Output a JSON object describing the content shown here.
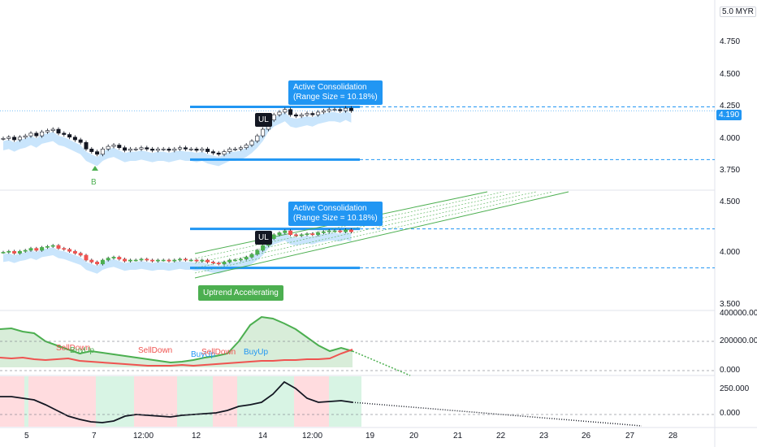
{
  "currency_label": "5.0 MYR",
  "price_tag": "4.190",
  "pane1_ticks": [
    "4.750",
    "4.500",
    "4.250",
    "4.000",
    "3.750"
  ],
  "pane2_ticks": [
    "4.500",
    "4.000",
    "3.500"
  ],
  "pane3_ticks": [
    "400000.000",
    "200000.000",
    "0.000"
  ],
  "pane4_ticks": [
    "250.000",
    "0.000"
  ],
  "x_ticks": [
    "5",
    "7",
    "12:00",
    "12",
    "14",
    "12:00",
    "19",
    "20",
    "21",
    "22",
    "23",
    "26",
    "27",
    "28"
  ],
  "annotation": {
    "line1": "Active Consolidation",
    "line2": "(Range Size = 10.18%)"
  },
  "annotation2": {
    "line1": "Active Consolidation",
    "line2": "(Range Size = 10.18%)"
  },
  "ul_label": "UL",
  "ul_label2": "UL",
  "b_label": "B",
  "uptrend_label": "Uptrend Accelerating",
  "signals": [
    {
      "text": "SellDown",
      "color": "#ef5350"
    },
    {
      "text": "BuyUp",
      "color": "#4caf50"
    },
    {
      "text": "SellDown",
      "color": "#ef5350"
    },
    {
      "text": "BuyUp",
      "color": "#2196f3"
    },
    {
      "text": "SellDown",
      "color": "#ef5350"
    },
    {
      "text": "BuyUp",
      "color": "#2196f3"
    }
  ],
  "colors": {
    "accent": "#2196f3",
    "up": "#26a69a",
    "down": "#ef5350",
    "green": "#4caf50",
    "band": "#bbdefb"
  },
  "chart_data": {
    "type": "candlestick",
    "panes": [
      {
        "name": "price",
        "ylim": [
          3.6,
          5.0
        ],
        "resistance": 4.22,
        "support": 3.82,
        "last": 4.19
      },
      {
        "name": "price-trend",
        "ylim": [
          3.4,
          4.6
        ],
        "resistance": 4.22,
        "support": 3.82
      },
      {
        "name": "volume-oscillator",
        "ylim": [
          0,
          400000
        ]
      },
      {
        "name": "momentum",
        "ylim": [
          -50,
          320
        ]
      }
    ],
    "close": [
      3.98,
      3.99,
      3.97,
      3.99,
      4.0,
      4.02,
      4.0,
      4.03,
      4.04,
      4.05,
      4.02,
      4.01,
      3.99,
      3.97,
      3.95,
      3.9,
      3.88,
      3.86,
      3.9,
      3.92,
      3.93,
      3.91,
      3.89,
      3.9,
      3.9,
      3.91,
      3.9,
      3.89,
      3.9,
      3.9,
      3.89,
      3.9,
      3.91,
      3.9,
      3.9,
      3.89,
      3.9,
      3.88,
      3.87,
      3.86,
      3.88,
      3.9,
      3.9,
      3.91,
      3.93,
      3.96,
      4.0,
      4.05,
      4.12,
      4.16,
      4.18,
      4.2,
      4.16,
      4.15,
      4.16,
      4.17,
      4.16,
      4.18,
      4.19,
      4.2,
      4.2,
      4.19,
      4.21,
      4.19
    ]
  }
}
